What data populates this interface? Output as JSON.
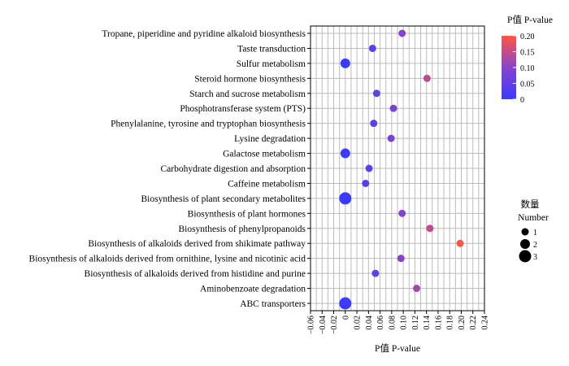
{
  "chart_data": {
    "type": "scatter",
    "xlabel": "P值 P-value",
    "x_ticks": [
      "−0.06",
      "−0.04",
      "−0.02",
      "0",
      "0.02",
      "0.04",
      "0.06",
      "0.08",
      "0.10",
      "0.12",
      "0.14",
      "0.16",
      "0.18",
      "0.20",
      "0.22",
      "0.24"
    ],
    "xlim": [
      -0.06,
      0.24
    ],
    "grid": true,
    "points": [
      {
        "pathway": "Tropane, piperidine and pyridine alkaloid biosynthesis",
        "x": 0.098,
        "y": 0.098,
        "size": 1
      },
      {
        "pathway": "Taste transduction",
        "x": 0.047,
        "y": 0.047,
        "size": 1
      },
      {
        "pathway": "Sulfur metabolism",
        "x": 0.0,
        "y": 0.0,
        "size": 2
      },
      {
        "pathway": "Steroid hormone biosynthesis",
        "x": 0.141,
        "y": 0.141,
        "size": 1
      },
      {
        "pathway": "Starch and sucrose metabolism",
        "x": 0.054,
        "y": 0.054,
        "size": 1
      },
      {
        "pathway": "Phosphotransferase system (PTS)",
        "x": 0.083,
        "y": 0.083,
        "size": 1
      },
      {
        "pathway": "Phenylalanine, tyrosine and tryptophan biosynthesis",
        "x": 0.049,
        "y": 0.049,
        "size": 1
      },
      {
        "pathway": "Lysine degradation",
        "x": 0.079,
        "y": 0.079,
        "size": 1
      },
      {
        "pathway": "Galactose metabolism",
        "x": 0.0,
        "y": 0.0,
        "size": 2
      },
      {
        "pathway": "Carbohydrate digestion and absorption",
        "x": 0.041,
        "y": 0.041,
        "size": 1
      },
      {
        "pathway": "Caffeine metabolism",
        "x": 0.035,
        "y": 0.035,
        "size": 1
      },
      {
        "pathway": "Biosynthesis of plant secondary metabolites",
        "x": 0.0,
        "y": 0.0,
        "size": 3
      },
      {
        "pathway": "Biosynthesis of plant hormones",
        "x": 0.098,
        "y": 0.098,
        "size": 1
      },
      {
        "pathway": "Biosynthesis of phenylpropanoids",
        "x": 0.146,
        "y": 0.146,
        "size": 1
      },
      {
        "pathway": "Biosynthesis of alkaloids derived from shikimate pathway",
        "x": 0.198,
        "y": 0.198,
        "size": 1
      },
      {
        "pathway": "Biosynthesis of alkaloids derived from ornithine, lysine and nicotinic acid",
        "x": 0.096,
        "y": 0.096,
        "size": 1
      },
      {
        "pathway": "Biosynthesis of alkaloids derived from histidine and purine",
        "x": 0.052,
        "y": 0.052,
        "size": 1
      },
      {
        "pathway": "Aminobenzoate degradation",
        "x": 0.123,
        "y": 0.123,
        "size": 1
      },
      {
        "pathway": "ABC transporters",
        "x": 0.0,
        "y": 0.0,
        "size": 3
      }
    ],
    "color_legend": {
      "title": "P值 P-value",
      "ticks": [
        "0.20",
        "0.15",
        "0.10",
        "0.05",
        "0"
      ],
      "range": [
        0,
        0.2
      ],
      "low_color": "#3b3bff",
      "mid_color": "#8844cc",
      "high_color": "#ff5544"
    },
    "size_legend": {
      "title_cn": "数量",
      "title_en": "Number",
      "values": [
        1,
        2,
        3
      ]
    }
  }
}
